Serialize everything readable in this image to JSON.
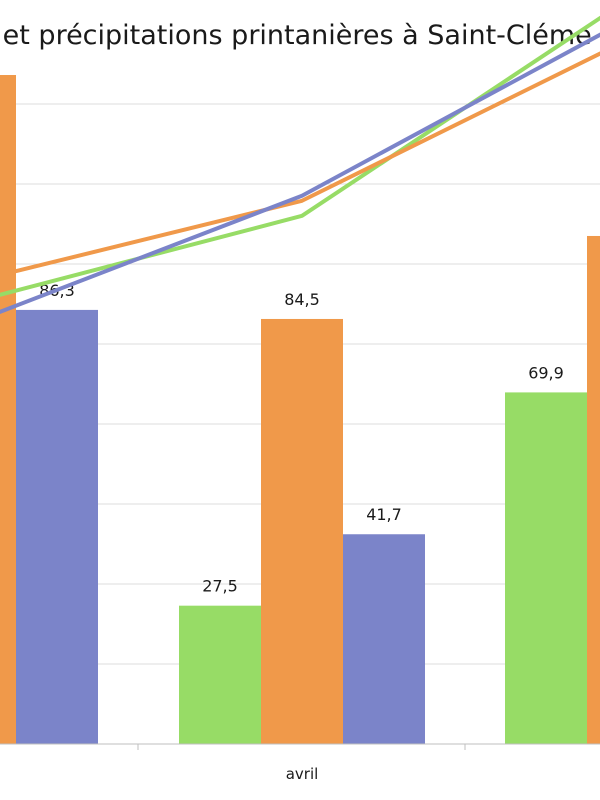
{
  "chart_data": {
    "type": "bar",
    "title": "s et précipitations printanières à Saint-Cléme",
    "categories": [
      "",
      "avril",
      ""
    ],
    "ylim": [
      0,
      160
    ],
    "grid": true,
    "series": [
      {
        "color": "#97dc66",
        "values": [
          null,
          27.5,
          69.9
        ]
      },
      {
        "color": "#f0994a",
        "values": [
          133.0,
          84.5,
          101.0
        ]
      },
      {
        "color": "#7b84c9",
        "values": [
          86.3,
          41.7,
          null
        ]
      }
    ],
    "data_labels": [
      "86,3",
      "27,5",
      "84,5",
      "41,7",
      "69,9"
    ],
    "trendlines": [
      {
        "color": "#97dc66",
        "values": [
          88,
          105,
          148
        ]
      },
      {
        "color": "#f0994a",
        "values": [
          92,
          108,
          140
        ]
      },
      {
        "color": "#7b84c9",
        "values": [
          84,
          109,
          144
        ]
      }
    ]
  }
}
